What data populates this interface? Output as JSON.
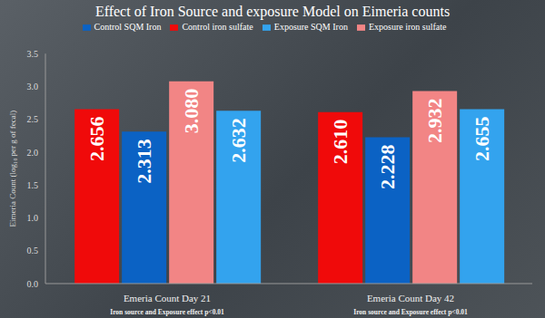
{
  "chart_data": {
    "type": "bar",
    "title": "Effect of Iron Source and exposure Model on Eimeria counts",
    "y_label": "Eimeria Count (log₁₀ per g of fecal)",
    "categories": [
      "Emeria Count Day 21",
      "Emeria Count Day 42"
    ],
    "annotations": [
      "Iron source and Exposure effect p<0.01",
      "Iron source and Exposure effect p<0.01"
    ],
    "series": [
      {
        "name": "Control iron sulfate",
        "color": "#f00a0a",
        "values": [
          2.656,
          2.61
        ],
        "value_labels": [
          "2.656",
          "2.610"
        ]
      },
      {
        "name": "Control SQM Iron",
        "color": "#0b62c4",
        "values": [
          2.313,
          2.228
        ],
        "value_labels": [
          "2.313",
          "2.228"
        ]
      },
      {
        "name": "Exposure iron sulfate",
        "color": "#f28585",
        "values": [
          3.08,
          2.932
        ],
        "value_labels": [
          "3.080",
          "2.932"
        ]
      },
      {
        "name": "Exposure SQM Iron",
        "color": "#33a3ee",
        "values": [
          2.632,
          2.655
        ],
        "value_labels": [
          "2.632",
          "2.655"
        ]
      }
    ],
    "ylim": [
      0,
      3.5
    ],
    "yticks": [
      {
        "value": 0,
        "label": "0.0"
      },
      {
        "value": 0.5,
        "label": "0.5"
      },
      {
        "value": 1,
        "label": "1.0"
      },
      {
        "value": 1.5,
        "label": "1.5"
      },
      {
        "value": 2,
        "label": "2.0"
      },
      {
        "value": 2.5,
        "label": "2.5"
      },
      {
        "value": 3,
        "label": "3.0"
      },
      {
        "value": 3.5,
        "label": "3.5"
      }
    ],
    "grid": false,
    "legend": "top",
    "data_labels": true
  }
}
